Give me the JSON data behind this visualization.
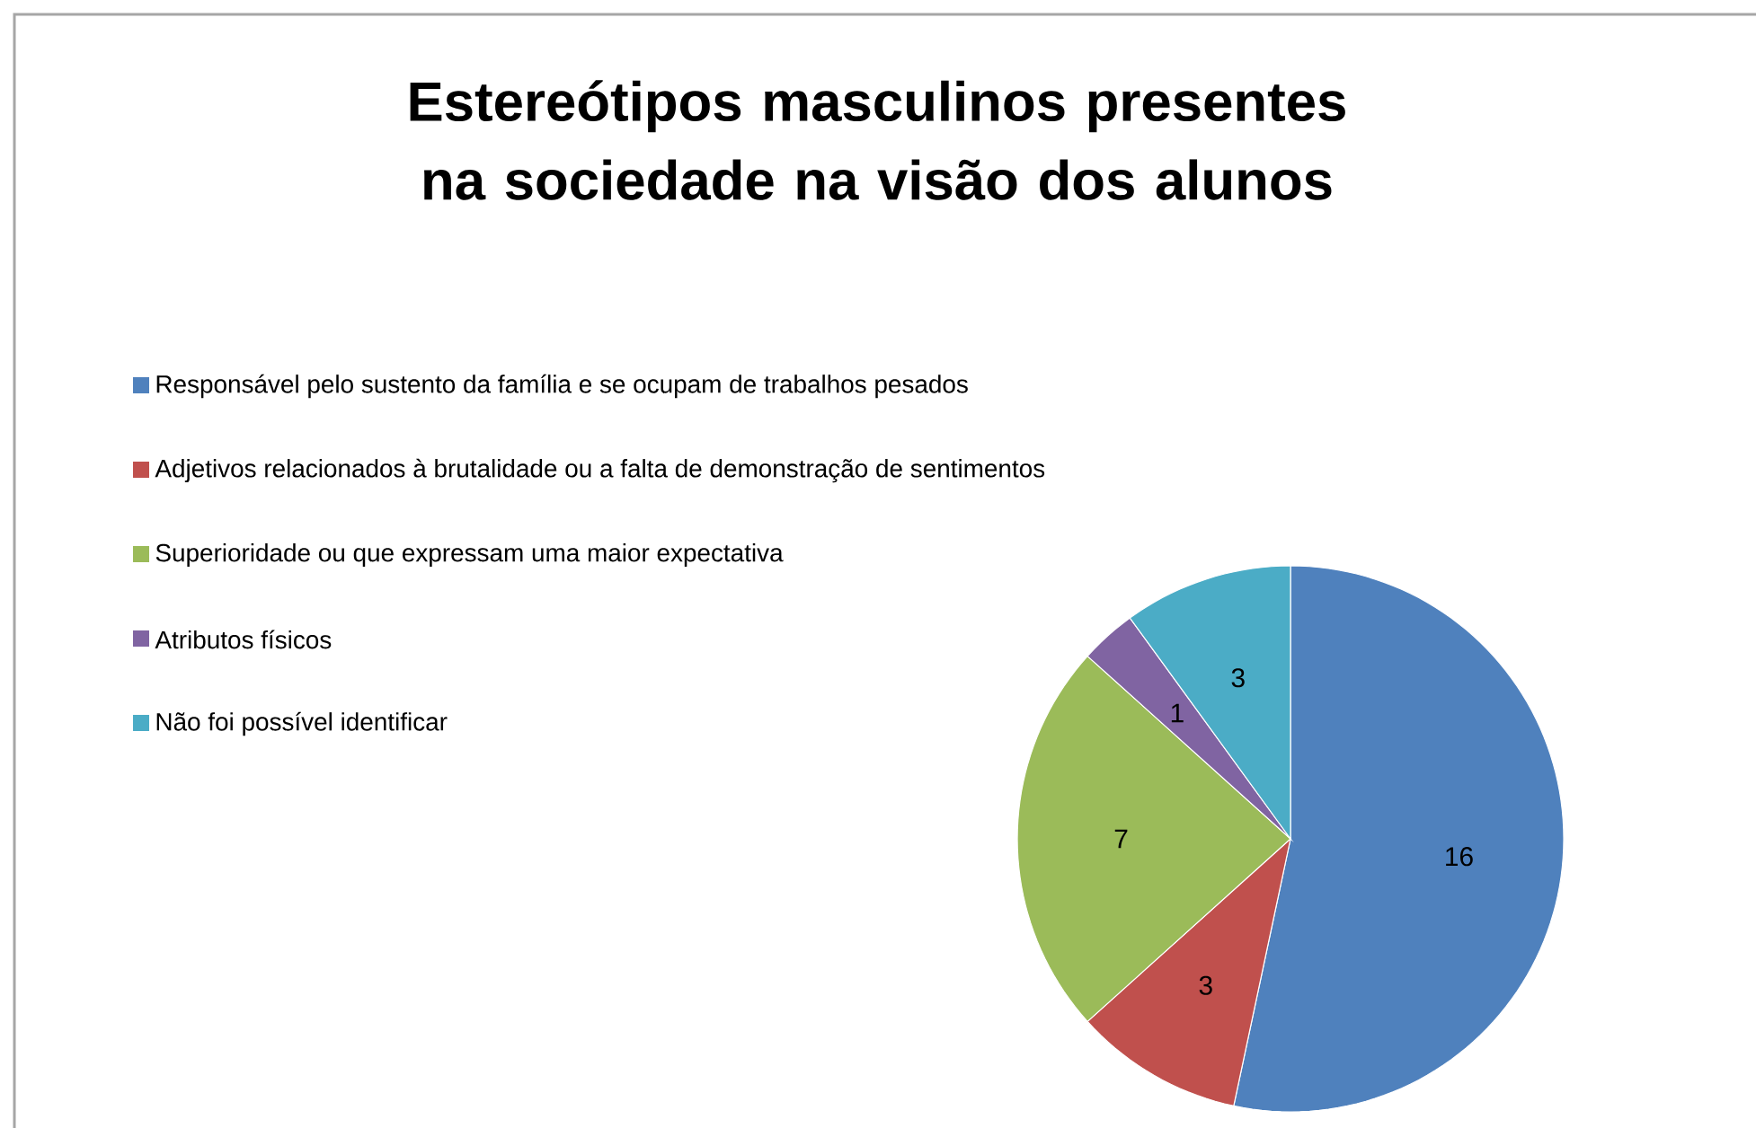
{
  "chart_data": {
    "type": "pie",
    "title": "Estereótipos masculinos presentes na sociedade na visão dos alunos",
    "categories": [
      "Responsável pelo sustento da família e se ocupam de trabalhos pesados",
      "Adjetivos relacionados à brutalidade ou a falta de  demonstração de sentimentos",
      "Superioridade ou que expressam uma maior expectativa",
      "Atributos físicos",
      "Não foi possível identificar"
    ],
    "values": [
      16,
      3,
      7,
      1,
      3
    ],
    "colors": [
      "#4f81bd",
      "#c0504d",
      "#9bbb59",
      "#8064a2",
      "#4bacc6"
    ],
    "data_labels": true,
    "legend": "left"
  }
}
